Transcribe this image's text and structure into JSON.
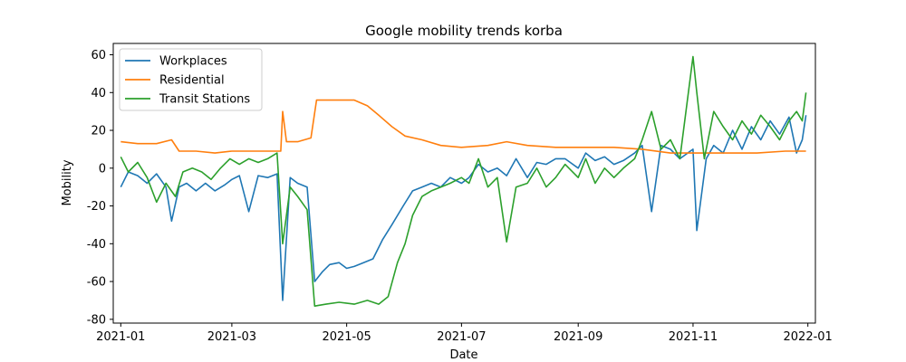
{
  "chart_data": {
    "type": "line",
    "title": "Google mobility trends korba",
    "xlabel": "Date",
    "ylabel": "Mobility",
    "x_range": [
      "2020-12-28",
      "2022-01-05"
    ],
    "xlim": [
      "2020-12-28",
      "2022-01-05"
    ],
    "x_ticks": [
      "2021-01",
      "2021-03",
      "2021-05",
      "2021-07",
      "2021-09",
      "2021-11",
      "2022-01"
    ],
    "ylim": [
      -82,
      66
    ],
    "y_ticks": [
      60,
      40,
      20,
      0,
      -20,
      -40,
      -60,
      -80
    ],
    "grid": false,
    "legend_position": "top-left",
    "series": [
      {
        "name": "Workplaces",
        "color": "#1f77b4",
        "points": [
          [
            "2021-01-01",
            -10
          ],
          [
            "2021-01-05",
            -2
          ],
          [
            "2021-01-10",
            -4
          ],
          [
            "2021-01-15",
            -8
          ],
          [
            "2021-01-20",
            -3
          ],
          [
            "2021-01-25",
            -10
          ],
          [
            "2021-01-28",
            -28
          ],
          [
            "2021-02-01",
            -10
          ],
          [
            "2021-02-05",
            -8
          ],
          [
            "2021-02-10",
            -12
          ],
          [
            "2021-02-15",
            -8
          ],
          [
            "2021-02-20",
            -12
          ],
          [
            "2021-02-25",
            -9
          ],
          [
            "2021-03-01",
            -6
          ],
          [
            "2021-03-05",
            -4
          ],
          [
            "2021-03-10",
            -23
          ],
          [
            "2021-03-15",
            -4
          ],
          [
            "2021-03-20",
            -5
          ],
          [
            "2021-03-25",
            -3
          ],
          [
            "2021-03-28",
            -70
          ],
          [
            "2021-04-01",
            -5
          ],
          [
            "2021-04-05",
            -8
          ],
          [
            "2021-04-10",
            -10
          ],
          [
            "2021-04-14",
            -60
          ],
          [
            "2021-04-18",
            -55
          ],
          [
            "2021-04-22",
            -51
          ],
          [
            "2021-04-27",
            -50
          ],
          [
            "2021-05-01",
            -53
          ],
          [
            "2021-05-05",
            -52
          ],
          [
            "2021-05-10",
            -50
          ],
          [
            "2021-05-15",
            -48
          ],
          [
            "2021-05-20",
            -38
          ],
          [
            "2021-05-25",
            -30
          ],
          [
            "2021-05-31",
            -20
          ],
          [
            "2021-06-05",
            -12
          ],
          [
            "2021-06-10",
            -10
          ],
          [
            "2021-06-15",
            -8
          ],
          [
            "2021-06-20",
            -10
          ],
          [
            "2021-06-25",
            -5
          ],
          [
            "2021-07-01",
            -8
          ],
          [
            "2021-07-05",
            -5
          ],
          [
            "2021-07-10",
            2
          ],
          [
            "2021-07-15",
            -2
          ],
          [
            "2021-07-20",
            0
          ],
          [
            "2021-07-25",
            -4
          ],
          [
            "2021-07-30",
            5
          ],
          [
            "2021-08-05",
            -5
          ],
          [
            "2021-08-10",
            3
          ],
          [
            "2021-08-15",
            2
          ],
          [
            "2021-08-20",
            5
          ],
          [
            "2021-08-25",
            5
          ],
          [
            "2021-09-01",
            0
          ],
          [
            "2021-09-05",
            8
          ],
          [
            "2021-09-10",
            4
          ],
          [
            "2021-09-15",
            6
          ],
          [
            "2021-09-20",
            2
          ],
          [
            "2021-09-25",
            4
          ],
          [
            "2021-10-01",
            8
          ],
          [
            "2021-10-05",
            12
          ],
          [
            "2021-10-10",
            -23
          ],
          [
            "2021-10-15",
            12
          ],
          [
            "2021-10-20",
            10
          ],
          [
            "2021-10-25",
            5
          ],
          [
            "2021-11-01",
            10
          ],
          [
            "2021-11-03",
            -33
          ],
          [
            "2021-11-08",
            5
          ],
          [
            "2021-11-12",
            12
          ],
          [
            "2021-11-17",
            8
          ],
          [
            "2021-11-22",
            20
          ],
          [
            "2021-11-27",
            10
          ],
          [
            "2021-12-02",
            22
          ],
          [
            "2021-12-07",
            15
          ],
          [
            "2021-12-12",
            25
          ],
          [
            "2021-12-17",
            18
          ],
          [
            "2021-12-22",
            27
          ],
          [
            "2021-12-26",
            8
          ],
          [
            "2021-12-29",
            15
          ],
          [
            "2021-12-31",
            28
          ]
        ]
      },
      {
        "name": "Residential",
        "color": "#ff7f0e",
        "points": [
          [
            "2021-01-01",
            14
          ],
          [
            "2021-01-10",
            13
          ],
          [
            "2021-01-20",
            13
          ],
          [
            "2021-01-28",
            15
          ],
          [
            "2021-02-01",
            9
          ],
          [
            "2021-02-10",
            9
          ],
          [
            "2021-02-20",
            8
          ],
          [
            "2021-03-01",
            9
          ],
          [
            "2021-03-10",
            9
          ],
          [
            "2021-03-20",
            9
          ],
          [
            "2021-03-27",
            9
          ],
          [
            "2021-03-28",
            30
          ],
          [
            "2021-03-30",
            14
          ],
          [
            "2021-04-05",
            14
          ],
          [
            "2021-04-12",
            16
          ],
          [
            "2021-04-15",
            36
          ],
          [
            "2021-04-20",
            36
          ],
          [
            "2021-04-27",
            36
          ],
          [
            "2021-05-05",
            36
          ],
          [
            "2021-05-12",
            33
          ],
          [
            "2021-05-18",
            28
          ],
          [
            "2021-05-25",
            22
          ],
          [
            "2021-06-01",
            17
          ],
          [
            "2021-06-10",
            15
          ],
          [
            "2021-06-20",
            12
          ],
          [
            "2021-07-01",
            11
          ],
          [
            "2021-07-15",
            12
          ],
          [
            "2021-07-25",
            14
          ],
          [
            "2021-08-05",
            12
          ],
          [
            "2021-08-20",
            11
          ],
          [
            "2021-09-05",
            11
          ],
          [
            "2021-09-20",
            11
          ],
          [
            "2021-10-05",
            10
          ],
          [
            "2021-10-20",
            8
          ],
          [
            "2021-11-05",
            8
          ],
          [
            "2021-11-20",
            8
          ],
          [
            "2021-12-05",
            8
          ],
          [
            "2021-12-20",
            9
          ],
          [
            "2021-12-31",
            9
          ]
        ]
      },
      {
        "name": "Transit Stations",
        "color": "#2ca02c",
        "points": [
          [
            "2021-01-01",
            6
          ],
          [
            "2021-01-05",
            -2
          ],
          [
            "2021-01-10",
            3
          ],
          [
            "2021-01-15",
            -5
          ],
          [
            "2021-01-20",
            -18
          ],
          [
            "2021-01-25",
            -8
          ],
          [
            "2021-01-30",
            -15
          ],
          [
            "2021-02-03",
            -2
          ],
          [
            "2021-02-08",
            0
          ],
          [
            "2021-02-13",
            -2
          ],
          [
            "2021-02-18",
            -6
          ],
          [
            "2021-02-23",
            0
          ],
          [
            "2021-02-28",
            5
          ],
          [
            "2021-03-05",
            2
          ],
          [
            "2021-03-10",
            5
          ],
          [
            "2021-03-15",
            3
          ],
          [
            "2021-03-20",
            5
          ],
          [
            "2021-03-25",
            8
          ],
          [
            "2021-03-28",
            -40
          ],
          [
            "2021-04-01",
            -10
          ],
          [
            "2021-04-05",
            -15
          ],
          [
            "2021-04-10",
            -22
          ],
          [
            "2021-04-14",
            -73
          ],
          [
            "2021-04-20",
            -72
          ],
          [
            "2021-04-27",
            -71
          ],
          [
            "2021-05-05",
            -72
          ],
          [
            "2021-05-12",
            -70
          ],
          [
            "2021-05-18",
            -72
          ],
          [
            "2021-05-23",
            -68
          ],
          [
            "2021-05-28",
            -50
          ],
          [
            "2021-06-01",
            -40
          ],
          [
            "2021-06-05",
            -25
          ],
          [
            "2021-06-10",
            -15
          ],
          [
            "2021-06-15",
            -12
          ],
          [
            "2021-06-20",
            -10
          ],
          [
            "2021-06-25",
            -8
          ],
          [
            "2021-07-01",
            -5
          ],
          [
            "2021-07-05",
            -8
          ],
          [
            "2021-07-10",
            5
          ],
          [
            "2021-07-15",
            -10
          ],
          [
            "2021-07-20",
            -5
          ],
          [
            "2021-07-25",
            -39
          ],
          [
            "2021-07-30",
            -10
          ],
          [
            "2021-08-05",
            -8
          ],
          [
            "2021-08-10",
            0
          ],
          [
            "2021-08-15",
            -10
          ],
          [
            "2021-08-20",
            -5
          ],
          [
            "2021-08-25",
            2
          ],
          [
            "2021-09-01",
            -5
          ],
          [
            "2021-09-05",
            5
          ],
          [
            "2021-09-10",
            -8
          ],
          [
            "2021-09-15",
            0
          ],
          [
            "2021-09-20",
            -5
          ],
          [
            "2021-09-25",
            0
          ],
          [
            "2021-10-01",
            5
          ],
          [
            "2021-10-05",
            15
          ],
          [
            "2021-10-10",
            30
          ],
          [
            "2021-10-15",
            10
          ],
          [
            "2021-10-20",
            15
          ],
          [
            "2021-10-25",
            5
          ],
          [
            "2021-11-01",
            59
          ],
          [
            "2021-11-03",
            40
          ],
          [
            "2021-11-07",
            5
          ],
          [
            "2021-11-12",
            30
          ],
          [
            "2021-11-17",
            22
          ],
          [
            "2021-11-22",
            15
          ],
          [
            "2021-11-27",
            25
          ],
          [
            "2021-12-02",
            18
          ],
          [
            "2021-12-07",
            28
          ],
          [
            "2021-12-12",
            22
          ],
          [
            "2021-12-17",
            15
          ],
          [
            "2021-12-22",
            25
          ],
          [
            "2021-12-26",
            30
          ],
          [
            "2021-12-29",
            25
          ],
          [
            "2021-12-31",
            40
          ]
        ]
      }
    ]
  }
}
